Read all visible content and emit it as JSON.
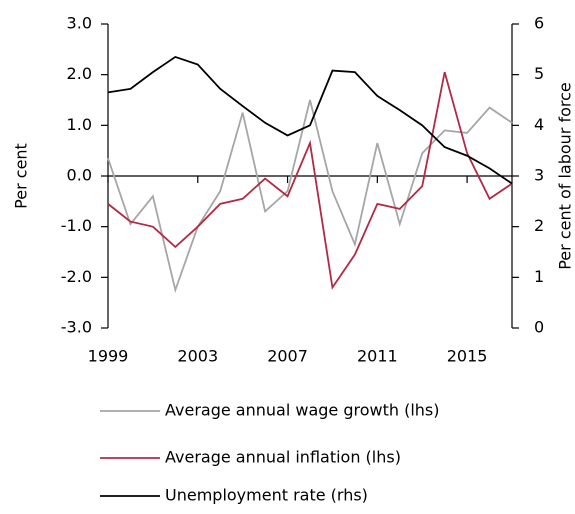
{
  "chart_data": {
    "type": "line",
    "x": [
      1999,
      2000,
      2001,
      2002,
      2003,
      2004,
      2005,
      2006,
      2007,
      2008,
      2009,
      2010,
      2011,
      2012,
      2013,
      2014,
      2015,
      2016,
      2017
    ],
    "xlim": [
      1999,
      2017
    ],
    "xticks": [
      1999,
      2003,
      2007,
      2011,
      2015
    ],
    "ylabel": "Per cent",
    "y2label": "Per cent of labour force",
    "ylim": [
      -3,
      3
    ],
    "yticks": [
      {
        "value": -3,
        "label": "-3.0"
      },
      {
        "value": -2,
        "label": "-2.0"
      },
      {
        "value": -1,
        "label": "-1.0"
      },
      {
        "value": 0,
        "label": "0.0"
      },
      {
        "value": 1,
        "label": "1.0"
      },
      {
        "value": 2,
        "label": "2.0"
      },
      {
        "value": 3,
        "label": "3.0"
      }
    ],
    "y2lim": [
      0,
      6
    ],
    "y2ticks": [
      0,
      1,
      2,
      3,
      4,
      5,
      6
    ],
    "legend": "bottom",
    "series": [
      {
        "name": "Average annual wage growth (lhs)",
        "color": "#a6a6a6",
        "values": [
          0.35,
          -0.95,
          -0.4,
          -2.25,
          -1.0,
          -0.3,
          1.25,
          -0.7,
          -0.3,
          1.5,
          -0.3,
          -1.35,
          0.65,
          -0.95,
          0.45,
          0.9,
          0.85,
          1.35,
          1.05
        ]
      },
      {
        "name": "Average annual inflation (lhs)",
        "color": "#b22a45",
        "values": [
          -0.55,
          -0.9,
          -1.0,
          -1.4,
          -1.0,
          -0.55,
          -0.45,
          -0.05,
          -0.4,
          0.65,
          -2.2,
          -1.55,
          -0.55,
          -0.65,
          -0.2,
          2.05,
          0.45,
          -0.45,
          -0.15
        ]
      },
      {
        "name": "Unemployment rate (rhs)",
        "color": "#000000",
        "axis": "y2",
        "values": [
          4.65,
          4.72,
          5.05,
          5.35,
          5.2,
          4.72,
          4.38,
          4.05,
          3.8,
          4.0,
          5.08,
          5.05,
          4.58,
          4.3,
          4.0,
          3.57,
          3.4,
          3.15,
          2.85
        ]
      }
    ]
  }
}
